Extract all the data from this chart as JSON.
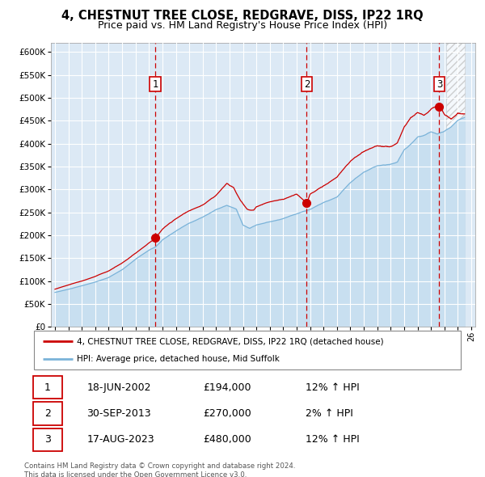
{
  "title": "4, CHESTNUT TREE CLOSE, REDGRAVE, DISS, IP22 1RQ",
  "subtitle": "Price paid vs. HM Land Registry's House Price Index (HPI)",
  "legend_line1": "4, CHESTNUT TREE CLOSE, REDGRAVE, DISS, IP22 1RQ (detached house)",
  "legend_line2": "HPI: Average price, detached house, Mid Suffolk",
  "transactions": [
    {
      "num": 1,
      "date": "18-JUN-2002",
      "year": 2002.46,
      "price": 194000,
      "pct": "12% ↑ HPI"
    },
    {
      "num": 2,
      "date": "30-SEP-2013",
      "year": 2013.75,
      "price": 270000,
      "pct": "2% ↑ HPI"
    },
    {
      "num": 3,
      "date": "17-AUG-2023",
      "year": 2023.62,
      "price": 480000,
      "pct": "12% ↑ HPI"
    }
  ],
  "hpi_color": "#7ab3d9",
  "hpi_fill_color": "#c8dff0",
  "price_color": "#cc0000",
  "dashed_color": "#cc0000",
  "bg_color": "#dce9f5",
  "grid_color": "#ffffff",
  "ylim": [
    0,
    620000
  ],
  "xlim_start": 1994.7,
  "xlim_end": 2026.3,
  "footnote1": "Contains HM Land Registry data © Crown copyright and database right 2024.",
  "footnote2": "This data is licensed under the Open Government Licence v3.0.",
  "hpi_keypoints_x": [
    1995,
    1996,
    1997,
    1998,
    1999,
    2000,
    2001,
    2002,
    2002.5,
    2003,
    2004,
    2005,
    2006,
    2007,
    2007.8,
    2008.5,
    2009.0,
    2009.5,
    2010,
    2011,
    2012,
    2013,
    2014,
    2015,
    2016,
    2017,
    2018,
    2019,
    2020,
    2020.5,
    2021,
    2021.5,
    2022,
    2022.5,
    2023,
    2023.5,
    2024,
    2024.5,
    2025,
    2026
  ],
  "hpi_keypoints_y": [
    75000,
    82000,
    90000,
    98000,
    108000,
    125000,
    148000,
    168000,
    175000,
    190000,
    210000,
    228000,
    242000,
    258000,
    268000,
    260000,
    225000,
    218000,
    225000,
    232000,
    238000,
    248000,
    258000,
    272000,
    284000,
    315000,
    338000,
    352000,
    355000,
    360000,
    388000,
    400000,
    415000,
    418000,
    425000,
    420000,
    425000,
    435000,
    450000,
    465000
  ],
  "red_keypoints_x": [
    1995,
    1996,
    1997,
    1998,
    1999,
    2000,
    2001,
    2002,
    2002.46,
    2003,
    2004,
    2005,
    2006,
    2007,
    2007.8,
    2008.3,
    2008.8,
    2009.3,
    2009.8,
    2010,
    2011,
    2012,
    2013,
    2013.75,
    2014,
    2015,
    2016,
    2017,
    2018,
    2019,
    2020,
    2020.5,
    2021,
    2021.5,
    2022,
    2022.5,
    2023,
    2023.62,
    2024,
    2024.5,
    2025
  ],
  "red_keypoints_y": [
    82000,
    92000,
    100000,
    110000,
    122000,
    140000,
    162000,
    185000,
    194000,
    215000,
    238000,
    255000,
    268000,
    288000,
    315000,
    305000,
    278000,
    258000,
    255000,
    262000,
    272000,
    280000,
    290000,
    270000,
    290000,
    308000,
    325000,
    358000,
    378000,
    390000,
    390000,
    398000,
    430000,
    450000,
    460000,
    455000,
    470000,
    480000,
    460000,
    450000,
    465000
  ]
}
